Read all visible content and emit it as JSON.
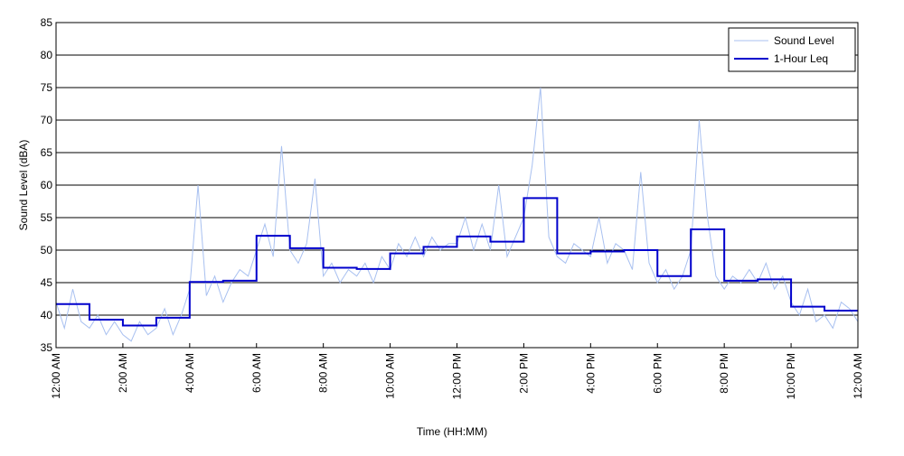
{
  "chart_data": {
    "type": "line",
    "xlabel": "Time (HH:MM)",
    "ylabel": "Sound Level (dBA)",
    "xlim": [
      0,
      24
    ],
    "ylim": [
      35,
      85
    ],
    "xticks": [
      {
        "value": 0,
        "label": "12:00 AM"
      },
      {
        "value": 2,
        "label": "2:00 AM"
      },
      {
        "value": 4,
        "label": "4:00 AM"
      },
      {
        "value": 6,
        "label": "6:00 AM"
      },
      {
        "value": 8,
        "label": "8:00 AM"
      },
      {
        "value": 10,
        "label": "10:00 AM"
      },
      {
        "value": 12,
        "label": "12:00 PM"
      },
      {
        "value": 14,
        "label": "2:00 PM"
      },
      {
        "value": 16,
        "label": "4:00 PM"
      },
      {
        "value": 18,
        "label": "6:00 PM"
      },
      {
        "value": 20,
        "label": "8:00 PM"
      },
      {
        "value": 22,
        "label": "10:00 PM"
      },
      {
        "value": 24,
        "label": "12:00 AM"
      }
    ],
    "yticks": [
      35,
      40,
      45,
      50,
      55,
      60,
      65,
      70,
      75,
      80,
      85
    ],
    "grid": true,
    "legend": "upper right",
    "series": [
      {
        "name": "Sound Level",
        "color": "#a8c0f0",
        "width": 1,
        "x": [
          0,
          0.25,
          0.5,
          0.75,
          1,
          1.25,
          1.5,
          1.75,
          2,
          2.25,
          2.5,
          2.75,
          3,
          3.25,
          3.5,
          3.75,
          4,
          4.25,
          4.5,
          4.75,
          5,
          5.25,
          5.5,
          5.75,
          6,
          6.25,
          6.5,
          6.75,
          7,
          7.25,
          7.5,
          7.75,
          8,
          8.25,
          8.5,
          8.75,
          9,
          9.25,
          9.5,
          9.75,
          10,
          10.25,
          10.5,
          10.75,
          11,
          11.25,
          11.5,
          11.75,
          12,
          12.25,
          12.5,
          12.75,
          13,
          13.25,
          13.5,
          13.75,
          14,
          14.25,
          14.5,
          14.75,
          15,
          15.25,
          15.5,
          15.75,
          16,
          16.25,
          16.5,
          16.75,
          17,
          17.25,
          17.5,
          17.75,
          18,
          18.25,
          18.5,
          18.75,
          19,
          19.25,
          19.5,
          19.75,
          20,
          20.25,
          20.5,
          20.75,
          21,
          21.25,
          21.5,
          21.75,
          22,
          22.25,
          22.5,
          22.75,
          23,
          23.25,
          23.5,
          23.75,
          24
        ],
        "values": [
          42,
          38,
          44,
          39,
          38,
          40,
          37,
          39,
          37,
          36,
          39,
          37,
          38,
          41,
          37,
          40,
          44,
          60,
          43,
          46,
          42,
          45,
          47,
          46,
          50,
          54,
          49,
          66,
          50,
          48,
          51,
          61,
          46,
          48,
          45,
          47,
          46,
          48,
          45,
          49,
          47,
          51,
          49,
          52,
          49,
          52,
          50,
          51,
          51,
          55,
          50,
          54,
          50,
          60,
          49,
          52,
          55,
          63,
          75,
          52,
          49,
          48,
          51,
          50,
          49,
          55,
          48,
          51,
          50,
          47,
          62,
          48,
          45,
          47,
          44,
          46,
          50,
          70,
          55,
          46,
          44,
          46,
          45,
          47,
          45,
          48,
          44,
          46,
          42,
          40,
          44,
          39,
          40,
          38,
          42,
          41,
          39
        ]
      },
      {
        "name": "1-Hour Leq",
        "color": "#0000cc",
        "width": 2,
        "step": "post",
        "x": [
          0,
          1,
          2,
          3,
          4,
          5,
          6,
          7,
          8,
          9,
          10,
          11,
          12,
          13,
          14,
          15,
          16,
          17,
          18,
          19,
          20,
          21,
          22,
          23,
          24
        ],
        "values": [
          41.7,
          39.3,
          38.4,
          39.6,
          45.1,
          45.3,
          52.2,
          50.3,
          47.3,
          47.1,
          49.5,
          50.5,
          52.1,
          51.3,
          58.0,
          49.5,
          49.8,
          50.0,
          46.0,
          53.2,
          45.3,
          45.5,
          41.3,
          40.7,
          40.7
        ]
      }
    ]
  }
}
